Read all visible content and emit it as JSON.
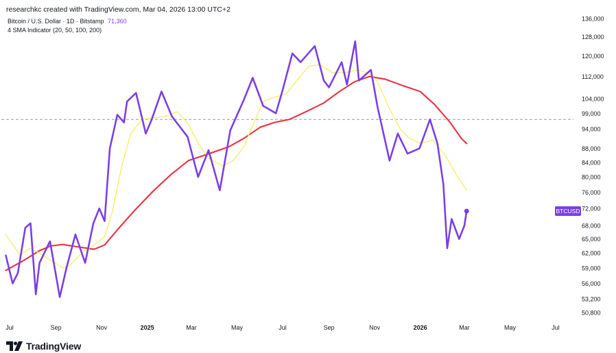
{
  "header": {
    "credit": "researchkc created with TradingView.com, Mar 04, 2026 13:00 UTC+2",
    "symbol": "Bitcoin / U.S. Dollar · 1D · Bitstamp",
    "last_price": "71,360",
    "indicator": "4 SMA Indicator (20, 50, 100, 200)"
  },
  "branding": {
    "logo_text": "TradingView",
    "logo_icon": "tradingview-logo-icon"
  },
  "colors": {
    "price_line": "#7b3fe4",
    "sma_short": "#f5ef6a",
    "sma_long": "#e63946",
    "ref_line": "#9598a1",
    "price_tag": "#7b3fe4"
  },
  "chart_data": {
    "type": "line",
    "title": "",
    "price_tag_label": "BTCUSD",
    "reference_level": 97000,
    "y_ticks": [
      136000,
      128000,
      120000,
      112000,
      104000,
      99000,
      94000,
      88000,
      84000,
      80000,
      76000,
      72000,
      68000,
      65000,
      62000,
      59000,
      56000,
      53200,
      50800
    ],
    "y_tick_labels": [
      "136,000",
      "128,000",
      "120,000",
      "112,000",
      "104,000",
      "99,000",
      "94,000",
      "88,000",
      "84,000",
      "80,000",
      "76,000",
      "72,000",
      "68,000",
      "65,000",
      "62,000",
      "59,000",
      "56,000",
      "53,200",
      "50,800"
    ],
    "x_ticks": [
      {
        "date": "2024-07-01",
        "label": "Jul"
      },
      {
        "date": "2024-09-01",
        "label": "Sep"
      },
      {
        "date": "2024-11-01",
        "label": "Nov"
      },
      {
        "date": "2025-01-01",
        "label": "2025"
      },
      {
        "date": "2025-03-01",
        "label": "Mar"
      },
      {
        "date": "2025-05-01",
        "label": "May"
      },
      {
        "date": "2025-07-01",
        "label": "Jul"
      },
      {
        "date": "2025-09-01",
        "label": "Sep"
      },
      {
        "date": "2025-11-01",
        "label": "Nov"
      },
      {
        "date": "2026-01-01",
        "label": "2026"
      },
      {
        "date": "2026-03-01",
        "label": "Mar"
      },
      {
        "date": "2026-05-01",
        "label": "May"
      },
      {
        "date": "2026-07-01",
        "label": "Jul"
      }
    ],
    "y_scale": "log",
    "grid": false,
    "series": [
      {
        "name": "BTCUSD",
        "points": [
          [
            "2024-06-26",
            61500
          ],
          [
            "2024-07-05",
            56000
          ],
          [
            "2024-07-12",
            58000
          ],
          [
            "2024-07-22",
            67500
          ],
          [
            "2024-07-29",
            68500
          ],
          [
            "2024-08-05",
            54000
          ],
          [
            "2024-08-10",
            60000
          ],
          [
            "2024-08-24",
            64500
          ],
          [
            "2024-09-06",
            53500
          ],
          [
            "2024-09-15",
            59000
          ],
          [
            "2024-09-27",
            66000
          ],
          [
            "2024-10-10",
            60000
          ],
          [
            "2024-10-21",
            68500
          ],
          [
            "2024-10-29",
            72000
          ],
          [
            "2024-11-05",
            69000
          ],
          [
            "2024-11-12",
            88000
          ],
          [
            "2024-11-22",
            98500
          ],
          [
            "2024-12-01",
            96000
          ],
          [
            "2024-12-05",
            103000
          ],
          [
            "2024-12-17",
            106000
          ],
          [
            "2024-12-30",
            92500
          ],
          [
            "2025-01-07",
            97000
          ],
          [
            "2025-01-20",
            106500
          ],
          [
            "2025-02-03",
            98000
          ],
          [
            "2025-02-24",
            91500
          ],
          [
            "2025-03-10",
            80000
          ],
          [
            "2025-03-24",
            87500
          ],
          [
            "2025-04-08",
            76500
          ],
          [
            "2025-04-22",
            93500
          ],
          [
            "2025-05-10",
            103500
          ],
          [
            "2025-05-22",
            111500
          ],
          [
            "2025-06-05",
            101500
          ],
          [
            "2025-06-22",
            99000
          ],
          [
            "2025-07-01",
            107000
          ],
          [
            "2025-07-14",
            121000
          ],
          [
            "2025-07-25",
            117500
          ],
          [
            "2025-08-13",
            124000
          ],
          [
            "2025-08-25",
            110500
          ],
          [
            "2025-09-01",
            108000
          ],
          [
            "2025-09-18",
            117500
          ],
          [
            "2025-09-25",
            109000
          ],
          [
            "2025-10-06",
            126000
          ],
          [
            "2025-10-11",
            110500
          ],
          [
            "2025-10-27",
            114500
          ],
          [
            "2025-11-05",
            101000
          ],
          [
            "2025-11-21",
            84500
          ],
          [
            "2025-12-02",
            92500
          ],
          [
            "2025-12-15",
            86500
          ],
          [
            "2025-12-31",
            88000
          ],
          [
            "2026-01-14",
            97000
          ],
          [
            "2026-01-24",
            89500
          ],
          [
            "2026-02-01",
            78000
          ],
          [
            "2026-02-06",
            63000
          ],
          [
            "2026-02-12",
            69500
          ],
          [
            "2026-02-22",
            65000
          ],
          [
            "2026-03-01",
            68000
          ],
          [
            "2026-03-04",
            71360
          ]
        ]
      },
      {
        "name": "SMA (short)",
        "points": [
          [
            "2024-06-26",
            66000
          ],
          [
            "2024-07-15",
            61500
          ],
          [
            "2024-07-28",
            63000
          ],
          [
            "2024-08-10",
            62000
          ],
          [
            "2024-08-25",
            60500
          ],
          [
            "2024-09-10",
            59000
          ],
          [
            "2024-09-20",
            59500
          ],
          [
            "2024-10-05",
            62000
          ],
          [
            "2024-10-20",
            63500
          ],
          [
            "2024-11-05",
            65500
          ],
          [
            "2024-11-15",
            71000
          ],
          [
            "2024-11-28",
            83000
          ],
          [
            "2024-12-10",
            92500
          ],
          [
            "2024-12-25",
            97000
          ],
          [
            "2025-01-10",
            97500
          ],
          [
            "2025-01-25",
            98000
          ],
          [
            "2025-02-10",
            99500
          ],
          [
            "2025-02-25",
            95500
          ],
          [
            "2025-03-10",
            89500
          ],
          [
            "2025-03-25",
            85000
          ],
          [
            "2025-04-12",
            83000
          ],
          [
            "2025-04-26",
            84500
          ],
          [
            "2025-05-10",
            88500
          ],
          [
            "2025-05-22",
            95000
          ],
          [
            "2025-06-05",
            103000
          ],
          [
            "2025-06-20",
            104500
          ],
          [
            "2025-07-05",
            105500
          ],
          [
            "2025-07-20",
            110500
          ],
          [
            "2025-08-05",
            116000
          ],
          [
            "2025-08-20",
            116500
          ],
          [
            "2025-09-05",
            113500
          ],
          [
            "2025-09-25",
            113500
          ],
          [
            "2025-10-10",
            114500
          ],
          [
            "2025-10-25",
            113000
          ],
          [
            "2025-11-05",
            110000
          ],
          [
            "2025-11-20",
            101000
          ],
          [
            "2025-12-05",
            94000
          ],
          [
            "2025-12-18",
            91000
          ],
          [
            "2026-01-01",
            89500
          ],
          [
            "2026-01-18",
            90500
          ],
          [
            "2026-02-05",
            85500
          ],
          [
            "2026-02-20",
            80000
          ],
          [
            "2026-03-04",
            76500
          ]
        ]
      },
      {
        "name": "SMA (long)",
        "points": [
          [
            "2024-06-26",
            58500
          ],
          [
            "2024-07-20",
            60500
          ],
          [
            "2024-08-10",
            62500
          ],
          [
            "2024-08-25",
            63500
          ],
          [
            "2024-09-10",
            63800
          ],
          [
            "2024-10-05",
            63200
          ],
          [
            "2024-10-22",
            62800
          ],
          [
            "2024-11-05",
            63700
          ],
          [
            "2024-11-22",
            67000
          ],
          [
            "2024-12-15",
            71500
          ],
          [
            "2025-01-10",
            76500
          ],
          [
            "2025-02-01",
            80500
          ],
          [
            "2025-02-25",
            84500
          ],
          [
            "2025-03-25",
            86500
          ],
          [
            "2025-04-20",
            88500
          ],
          [
            "2025-05-10",
            91000
          ],
          [
            "2025-06-01",
            94500
          ],
          [
            "2025-06-20",
            96000
          ],
          [
            "2025-07-10",
            97000
          ],
          [
            "2025-08-01",
            99500
          ],
          [
            "2025-08-25",
            102500
          ],
          [
            "2025-09-15",
            106500
          ],
          [
            "2025-10-05",
            110000
          ],
          [
            "2025-10-25",
            112000
          ],
          [
            "2025-11-15",
            111000
          ],
          [
            "2025-12-10",
            108500
          ],
          [
            "2026-01-01",
            106500
          ],
          [
            "2026-01-20",
            102000
          ],
          [
            "2026-02-10",
            96000
          ],
          [
            "2026-02-25",
            91000
          ],
          [
            "2026-03-04",
            89500
          ]
        ]
      }
    ]
  }
}
